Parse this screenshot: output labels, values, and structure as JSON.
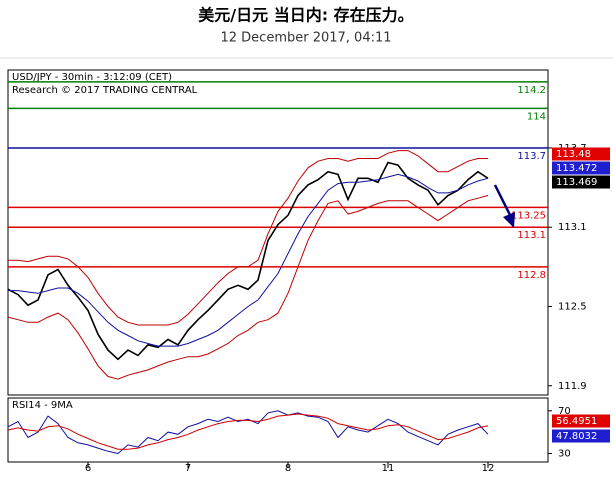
{
  "chart_data": [
    {
      "type": "line",
      "title": "美元/日元 当日内: 存在压力。",
      "subtitle": "12 December 2017, 04:11",
      "label": "USD/JPY - 30min - 3:12:09 (CET)",
      "source": "Research © 2017 TRADING CENTRAL",
      "x": [
        0,
        1,
        2,
        3,
        4,
        5,
        6,
        7,
        8,
        9,
        10,
        11,
        12,
        13,
        14,
        15,
        16,
        17,
        18,
        19,
        20,
        21,
        22,
        23,
        24,
        25,
        26,
        27,
        28,
        29,
        30,
        31,
        32,
        33,
        34,
        35,
        36,
        37,
        38,
        39,
        40,
        41,
        42,
        43,
        44,
        45,
        46,
        47,
        48
      ],
      "xlim": [
        0,
        54
      ],
      "xticks": [
        {
          "value": 8,
          "label": "6"
        },
        {
          "value": 18,
          "label": "7"
        },
        {
          "value": 28,
          "label": "8"
        },
        {
          "value": 38,
          "label": "11"
        },
        {
          "value": 48,
          "label": "12"
        }
      ],
      "ylim": [
        111.83,
        114.29
      ],
      "yticks": [
        113.7,
        113.1,
        112.5,
        111.9
      ],
      "series": [
        {
          "color": "#000000",
          "values": [
            112.63,
            112.59,
            112.51,
            112.55,
            112.74,
            112.78,
            112.66,
            112.57,
            112.47,
            112.29,
            112.17,
            112.1,
            112.17,
            112.13,
            112.21,
            112.19,
            112.25,
            112.21,
            112.32,
            112.4,
            112.47,
            112.55,
            112.63,
            112.66,
            112.63,
            112.7,
            113.0,
            113.12,
            113.19,
            113.34,
            113.42,
            113.46,
            113.52,
            113.5,
            113.31,
            113.47,
            113.47,
            113.44,
            113.59,
            113.57,
            113.47,
            113.42,
            113.38,
            113.27,
            113.34,
            113.38,
            113.46,
            113.52,
            113.47
          ]
        },
        {
          "color": "#c00000",
          "values": [
            112.85,
            112.85,
            112.84,
            112.86,
            112.88,
            112.88,
            112.86,
            112.8,
            112.72,
            112.6,
            112.5,
            112.42,
            112.38,
            112.36,
            112.36,
            112.36,
            112.36,
            112.38,
            112.44,
            112.52,
            112.6,
            112.68,
            112.75,
            112.8,
            112.8,
            112.85,
            113.05,
            113.22,
            113.32,
            113.45,
            113.55,
            113.6,
            113.62,
            113.62,
            113.6,
            113.62,
            113.62,
            113.62,
            113.66,
            113.68,
            113.68,
            113.64,
            113.58,
            113.52,
            113.52,
            113.56,
            113.6,
            113.62,
            113.62
          ]
        },
        {
          "color": "#c00000",
          "values": [
            112.42,
            112.4,
            112.38,
            112.38,
            112.42,
            112.45,
            112.4,
            112.3,
            112.18,
            112.05,
            111.97,
            111.95,
            111.98,
            112.0,
            112.02,
            112.05,
            112.08,
            112.1,
            112.12,
            112.12,
            112.14,
            112.18,
            112.22,
            112.28,
            112.32,
            112.38,
            112.4,
            112.45,
            112.6,
            112.8,
            113.0,
            113.15,
            113.28,
            113.3,
            113.2,
            113.22,
            113.25,
            113.28,
            113.3,
            113.3,
            113.3,
            113.25,
            113.2,
            113.15,
            113.2,
            113.25,
            113.3,
            113.32,
            113.34
          ]
        },
        {
          "color": "#1010a0",
          "values": [
            112.62,
            112.62,
            112.61,
            112.6,
            112.62,
            112.64,
            112.64,
            112.6,
            112.54,
            112.46,
            112.38,
            112.32,
            112.28,
            112.24,
            112.22,
            112.2,
            112.2,
            112.2,
            112.22,
            112.25,
            112.28,
            112.32,
            112.38,
            112.44,
            112.5,
            112.55,
            112.65,
            112.75,
            112.9,
            113.05,
            113.18,
            113.28,
            113.38,
            113.43,
            113.44,
            113.44,
            113.45,
            113.46,
            113.48,
            113.5,
            113.48,
            113.45,
            113.4,
            113.36,
            113.36,
            113.38,
            113.42,
            113.45,
            113.47
          ]
        }
      ],
      "levels": [
        {
          "value": 114.2,
          "color": "#008000"
        },
        {
          "value": 114,
          "color": "#008000"
        },
        {
          "value": 113.7,
          "color": "#1010a0"
        },
        {
          "value": 113.25,
          "color": "#e00000"
        },
        {
          "value": 113.1,
          "color": "#e00000"
        },
        {
          "value": 112.8,
          "color": "#e00000"
        }
      ],
      "badges": [
        {
          "value": 113.48,
          "color": "#e00000"
        },
        {
          "value": 113.472,
          "color": "#1f1fcf"
        },
        {
          "value": 113.469,
          "color": "#000000"
        }
      ]
    },
    {
      "type": "line",
      "label": "RSI14 - 9MA",
      "x": [
        0,
        1,
        2,
        3,
        4,
        5,
        6,
        7,
        8,
        9,
        10,
        11,
        12,
        13,
        14,
        15,
        16,
        17,
        18,
        19,
        20,
        21,
        22,
        23,
        24,
        25,
        26,
        27,
        28,
        29,
        30,
        31,
        32,
        33,
        34,
        35,
        36,
        37,
        38,
        39,
        40,
        41,
        42,
        43,
        44,
        45,
        46,
        47,
        48
      ],
      "xlim": [
        0,
        54
      ],
      "ylim": [
        22,
        82
      ],
      "yticks": [
        70,
        30
      ],
      "series": [
        {
          "color": "#1010a0",
          "values": [
            55,
            60,
            45,
            50,
            65,
            58,
            45,
            40,
            38,
            35,
            32,
            30,
            38,
            36,
            45,
            42,
            50,
            48,
            55,
            58,
            62,
            60,
            64,
            60,
            62,
            58,
            68,
            70,
            66,
            68,
            65,
            64,
            60,
            45,
            55,
            52,
            50,
            56,
            62,
            58,
            50,
            46,
            42,
            38,
            48,
            52,
            55,
            58,
            48
          ]
        },
        {
          "color": "#d00000",
          "values": [
            52,
            54,
            52,
            51,
            55,
            56,
            53,
            48,
            44,
            40,
            37,
            34,
            34,
            35,
            38,
            40,
            43,
            45,
            48,
            52,
            55,
            58,
            60,
            61,
            61,
            60,
            62,
            65,
            66,
            67,
            66,
            65,
            63,
            58,
            56,
            54,
            52,
            53,
            56,
            57,
            55,
            51,
            47,
            43,
            44,
            47,
            50,
            54,
            56
          ]
        }
      ],
      "badges": [
        {
          "value": 56.4951,
          "color": "#e00000"
        },
        {
          "value": 47.8032,
          "color": "#1f1fcf"
        }
      ]
    }
  ]
}
